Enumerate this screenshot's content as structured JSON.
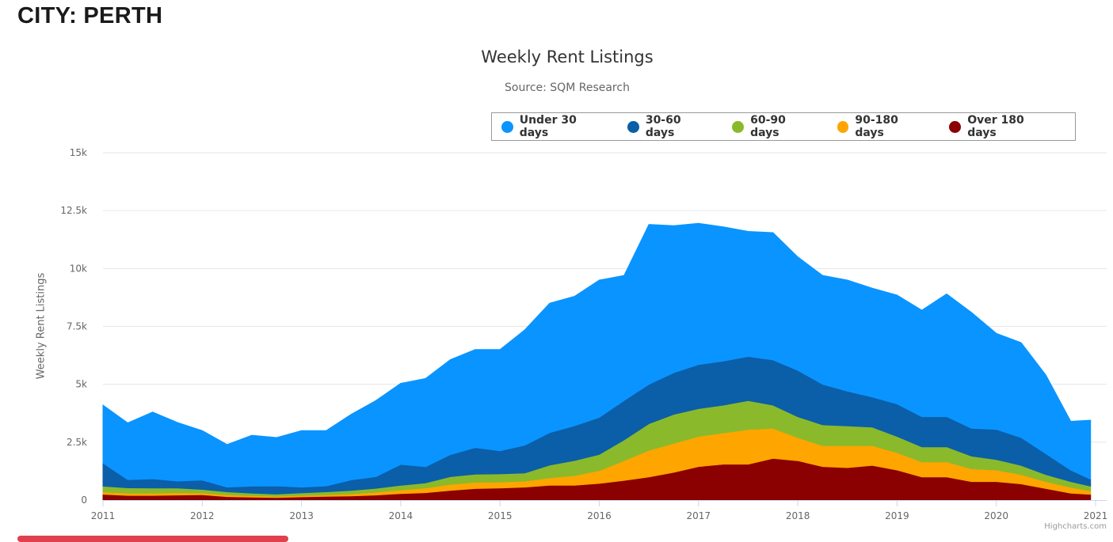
{
  "page": {
    "heading": "CITY: PERTH"
  },
  "credit": "Highcharts.com",
  "chart_data": {
    "type": "area",
    "stacking": "normal",
    "title": "Weekly Rent Listings",
    "subtitle": "Source: SQM Research",
    "ylabel": "Weekly Rent Listings",
    "xlabel": "",
    "ylim": [
      0,
      15000
    ],
    "xlim": [
      2011,
      2021
    ],
    "y_ticks": [
      {
        "value": 0,
        "label": "0"
      },
      {
        "value": 2500,
        "label": "2.5k"
      },
      {
        "value": 5000,
        "label": "5k"
      },
      {
        "value": 7500,
        "label": "7.5k"
      },
      {
        "value": 10000,
        "label": "10k"
      },
      {
        "value": 12500,
        "label": "12.5k"
      },
      {
        "value": 15000,
        "label": "15k"
      }
    ],
    "x_ticks": [
      "2011",
      "2012",
      "2013",
      "2014",
      "2015",
      "2016",
      "2017",
      "2018",
      "2019",
      "2020",
      "2021"
    ],
    "grid": true,
    "legend_position": "top-right",
    "x": [
      2011.0,
      2011.25,
      2011.5,
      2011.75,
      2012.0,
      2012.25,
      2012.5,
      2012.75,
      2013.0,
      2013.25,
      2013.5,
      2013.75,
      2014.0,
      2014.25,
      2014.5,
      2014.75,
      2015.0,
      2015.25,
      2015.5,
      2015.75,
      2016.0,
      2016.25,
      2016.5,
      2016.75,
      2017.0,
      2017.25,
      2017.5,
      2017.75,
      2018.0,
      2018.25,
      2018.5,
      2018.75,
      2019.0,
      2019.25,
      2019.5,
      2019.75,
      2020.0,
      2020.25,
      2020.5,
      2020.75,
      2020.95
    ],
    "series": [
      {
        "name": "Over 180 days",
        "color": "#8b0000",
        "values": [
          250,
          200,
          200,
          220,
          230,
          150,
          130,
          110,
          140,
          160,
          180,
          220,
          280,
          320,
          420,
          500,
          520,
          560,
          640,
          640,
          720,
          850,
          1000,
          1200,
          1450,
          1550,
          1550,
          1800,
          1700,
          1450,
          1400,
          1500,
          1300,
          1000,
          1000,
          800,
          800,
          700,
          500,
          300,
          250
        ]
      },
      {
        "name": "90-180 days",
        "color": "#ffa500",
        "values": [
          100,
          100,
          100,
          100,
          80,
          80,
          60,
          50,
          60,
          70,
          90,
          120,
          160,
          200,
          260,
          270,
          260,
          260,
          320,
          420,
          550,
          850,
          1150,
          1250,
          1300,
          1350,
          1500,
          1300,
          1000,
          900,
          950,
          850,
          750,
          650,
          650,
          550,
          500,
          400,
          300,
          250,
          150
        ]
      },
      {
        "name": "60-90 days",
        "color": "#8aba2b",
        "values": [
          250,
          230,
          220,
          200,
          150,
          130,
          110,
          100,
          110,
          130,
          150,
          170,
          200,
          220,
          330,
          350,
          350,
          350,
          550,
          650,
          700,
          900,
          1150,
          1250,
          1200,
          1200,
          1250,
          1000,
          900,
          900,
          850,
          800,
          700,
          650,
          650,
          550,
          450,
          400,
          300,
          250,
          200
        ]
      },
      {
        "name": "30-60 days",
        "color": "#0b5ea8",
        "values": [
          1000,
          350,
          400,
          300,
          400,
          200,
          300,
          350,
          250,
          250,
          450,
          500,
          900,
          700,
          950,
          1150,
          1000,
          1200,
          1400,
          1500,
          1600,
          1700,
          1700,
          1800,
          1900,
          1900,
          1900,
          1950,
          2000,
          1750,
          1500,
          1300,
          1400,
          1300,
          1300,
          1200,
          1300,
          1200,
          900,
          500,
          300
        ]
      },
      {
        "name": "Under 30 days",
        "color": "#0a94ff",
        "values": [
          2500,
          2450,
          2880,
          2530,
          2140,
          1840,
          2200,
          2090,
          2440,
          2390,
          2830,
          3290,
          3500,
          3810,
          4100,
          4230,
          4370,
          4980,
          5590,
          5590,
          5930,
          5400,
          6900,
          6350,
          6100,
          5800,
          5400,
          5500,
          4900,
          4700,
          4800,
          4700,
          4700,
          4600,
          5300,
          5000,
          4150,
          4100,
          3400,
          2100,
          2550
        ]
      }
    ],
    "legend_order": [
      "Under 30 days",
      "30-60 days",
      "60-90 days",
      "90-180 days",
      "Over 180 days"
    ]
  }
}
